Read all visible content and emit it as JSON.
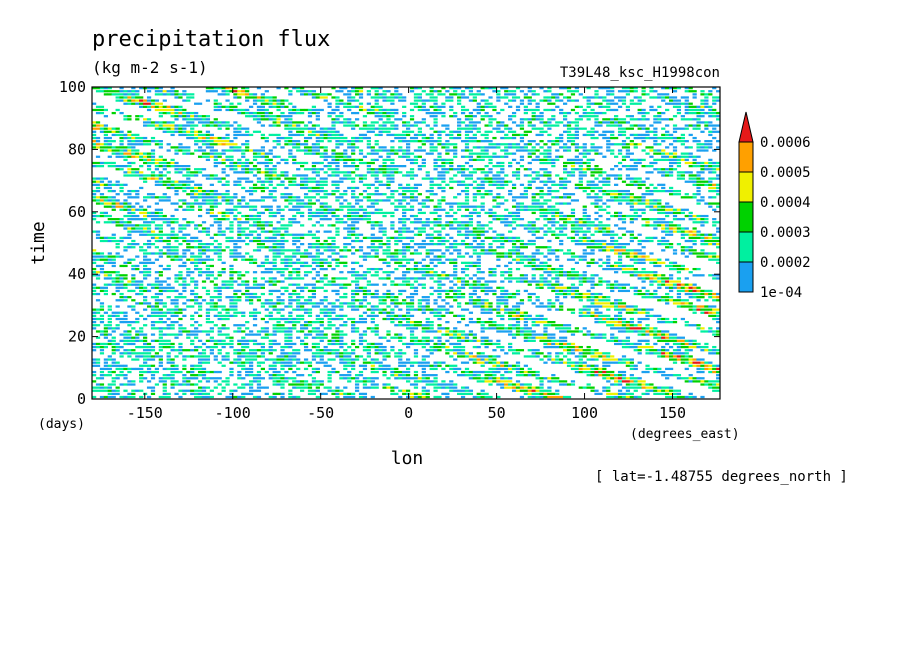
{
  "chart_data": {
    "type": "heatmap",
    "title": "precipitation flux",
    "units": "(kg m-2 s-1)",
    "experiment": "T39L48_ksc_H1998con",
    "xlabel": "lon",
    "ylabel": "time",
    "x_units": "(degrees_east)",
    "y_units": "(days)",
    "footnote": "[ lat=-1.48755 degrees_north ]",
    "xlim": [
      -180,
      177
    ],
    "ylim": [
      0,
      100
    ],
    "x_ticks": [
      -150,
      -100,
      -50,
      0,
      50,
      100,
      150
    ],
    "x_tick_labels": [
      "-150",
      "-100",
      "-50",
      "0",
      "50",
      "100",
      "150"
    ],
    "y_ticks": [
      0,
      20,
      40,
      60,
      80,
      100
    ],
    "y_tick_labels": [
      "0",
      "20",
      "40",
      "60",
      "80",
      "100"
    ],
    "grid": false,
    "legend_position": "right",
    "colorbar": {
      "levels": [
        0.0001,
        0.0002,
        0.0003,
        0.0004,
        0.0005,
        0.0006
      ],
      "level_labels": [
        "1e-04",
        "0.0002",
        "0.0003",
        "0.0004",
        "0.0005",
        "0.0006"
      ],
      "colors": [
        "#1aa0f0",
        "#00f0a0",
        "#00d200",
        "#f0f000",
        "#ffa000",
        "#e61919"
      ],
      "extend": "max"
    },
    "pattern": "intermittent precipitation bands propagating westward (eastward time tilt) across all longitudes over days 0-100"
  }
}
